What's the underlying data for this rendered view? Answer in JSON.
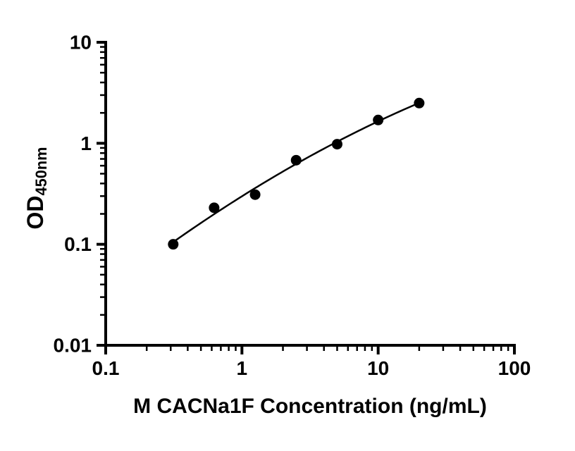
{
  "chart_data": {
    "type": "scatter",
    "x": [
      0.313,
      0.625,
      1.25,
      2.5,
      5,
      10,
      20
    ],
    "y": [
      0.1,
      0.23,
      0.31,
      0.68,
      0.98,
      1.7,
      2.5
    ],
    "xlabel": "M CACNa1F Concentration (ng/mL)",
    "ylabel": "OD",
    "ylabel_subscript": "450nm",
    "xscale": "log",
    "yscale": "log",
    "xlim": [
      0.1,
      100
    ],
    "ylim": [
      0.01,
      10
    ],
    "x_ticks": [
      0.1,
      1,
      10,
      100
    ],
    "x_tick_labels": [
      "0.1",
      "1",
      "10",
      "100"
    ],
    "y_ticks": [
      0.01,
      0.1,
      1,
      10
    ],
    "y_tick_labels": [
      "0.01",
      "0.1",
      "1",
      "10"
    ],
    "grid": false,
    "legend_position": "none",
    "fit_curve": "smooth quadratic fit in log-log space through standard points",
    "marker_color": "#000000",
    "line_color": "#000000",
    "axis_color": "#000000",
    "background_color": "#ffffff"
  }
}
